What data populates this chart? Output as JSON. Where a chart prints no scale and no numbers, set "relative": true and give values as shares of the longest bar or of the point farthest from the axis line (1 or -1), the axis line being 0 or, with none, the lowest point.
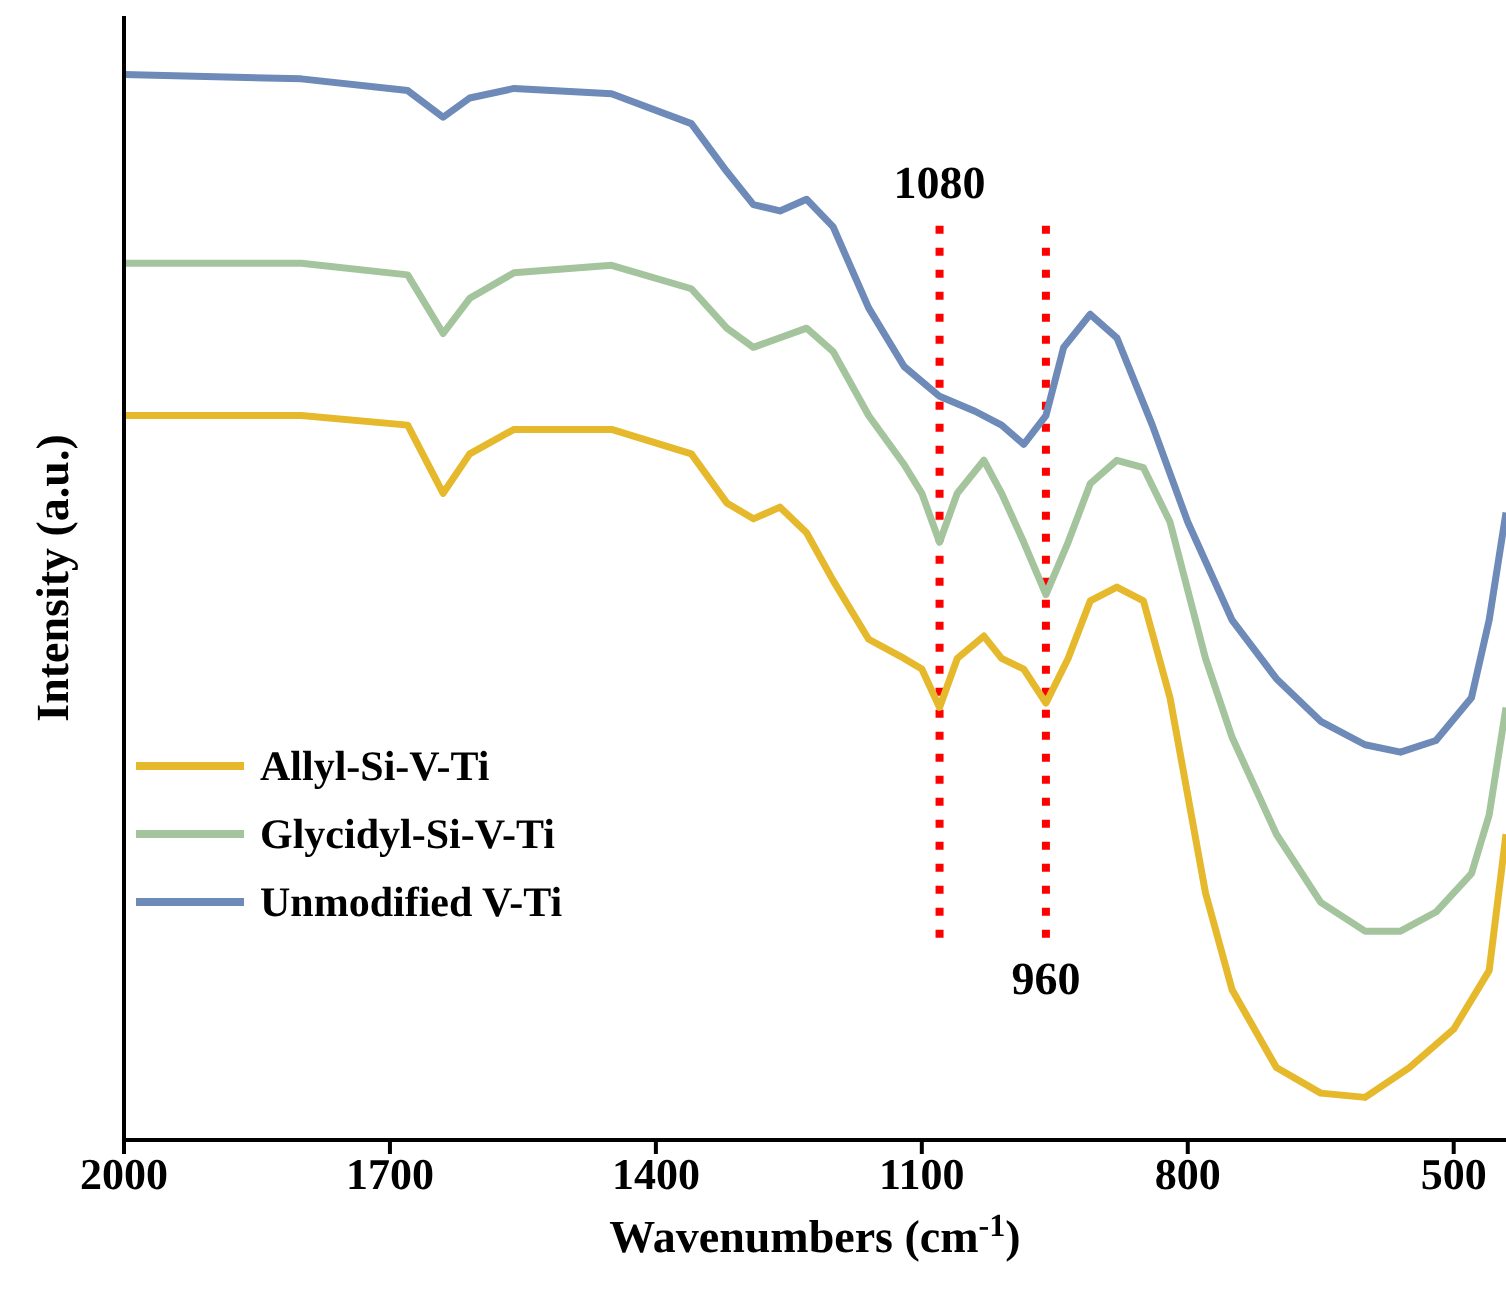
{
  "chart_data": {
    "type": "line",
    "xlabel": "Wavenumbers (cm$^{-1}$)",
    "ylabel": "Intensity (a.u.)",
    "relative": true,
    "xlim": [
      2000,
      441
    ],
    "xticks": [
      2000,
      1700,
      1400,
      1100,
      800,
      500
    ],
    "grid": false,
    "legend": "left",
    "marker": "none",
    "line_style": "solid",
    "series": [
      {
        "name": "Allyl-Si-V-Ti",
        "color": "#e5b92b",
        "x": [
          2000,
          1800,
          1680,
          1640,
          1610,
          1560,
          1450,
          1360,
          1320,
          1290,
          1260,
          1230,
          1200,
          1160,
          1120,
          1100,
          1080,
          1060,
          1030,
          1010,
          985,
          960,
          935,
          910,
          880,
          850,
          820,
          780,
          750,
          700,
          650,
          600,
          550,
          500,
          460,
          441
        ],
        "values": [
          0.68,
          0.68,
          0.671,
          0.607,
          0.644,
          0.667,
          0.667,
          0.644,
          0.598,
          0.583,
          0.594,
          0.57,
          0.525,
          0.47,
          0.452,
          0.442,
          0.406,
          0.452,
          0.473,
          0.452,
          0.442,
          0.41,
          0.452,
          0.506,
          0.519,
          0.506,
          0.415,
          0.232,
          0.141,
          0.068,
          0.044,
          0.04,
          0.068,
          0.104,
          0.159,
          0.287
        ]
      },
      {
        "name": "Glycidyl-Si-V-Ti",
        "color": "#a4c49d",
        "x": [
          2000,
          1800,
          1680,
          1640,
          1610,
          1560,
          1450,
          1360,
          1320,
          1290,
          1260,
          1230,
          1200,
          1160,
          1120,
          1100,
          1080,
          1060,
          1030,
          1010,
          985,
          960,
          935,
          910,
          880,
          850,
          820,
          780,
          750,
          700,
          650,
          600,
          560,
          520,
          480,
          460,
          441
        ],
        "values": [
          0.823,
          0.823,
          0.812,
          0.757,
          0.79,
          0.814,
          0.821,
          0.799,
          0.762,
          0.744,
          0.753,
          0.762,
          0.74,
          0.68,
          0.634,
          0.607,
          0.561,
          0.607,
          0.638,
          0.607,
          0.561,
          0.512,
          0.561,
          0.616,
          0.638,
          0.631,
          0.58,
          0.452,
          0.378,
          0.287,
          0.223,
          0.196,
          0.196,
          0.214,
          0.25,
          0.305,
          0.406
        ]
      },
      {
        "name": "Unmodified V-Ti",
        "color": "#6d8ab8",
        "x": [
          2000,
          1800,
          1680,
          1640,
          1610,
          1560,
          1450,
          1360,
          1320,
          1290,
          1260,
          1230,
          1200,
          1160,
          1120,
          1080,
          1040,
          1010,
          985,
          960,
          940,
          910,
          880,
          840,
          800,
          750,
          700,
          650,
          600,
          560,
          520,
          480,
          460,
          441
        ],
        "values": [
          1.0,
          0.996,
          0.985,
          0.96,
          0.978,
          0.987,
          0.982,
          0.954,
          0.909,
          0.878,
          0.872,
          0.883,
          0.857,
          0.781,
          0.726,
          0.698,
          0.684,
          0.671,
          0.653,
          0.68,
          0.744,
          0.775,
          0.753,
          0.671,
          0.58,
          0.488,
          0.433,
          0.393,
          0.371,
          0.364,
          0.375,
          0.415,
          0.488,
          0.589
        ]
      }
    ],
    "ref_lines": [
      {
        "axis": "x",
        "value": 1080,
        "label": "1080",
        "color": "#ff0000",
        "line_style": "dotted"
      },
      {
        "axis": "x",
        "value": 960,
        "label": "960",
        "color": "#ff0000",
        "line_style": "dotted"
      }
    ]
  }
}
